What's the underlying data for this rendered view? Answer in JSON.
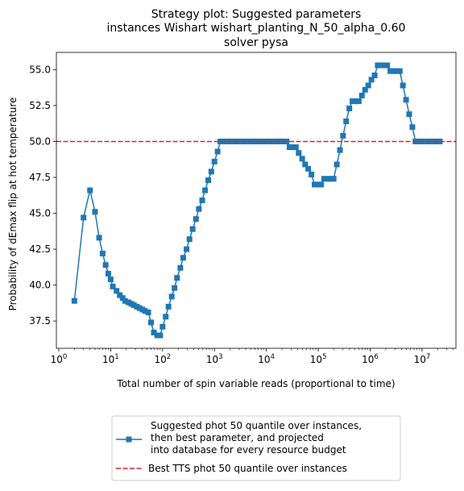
{
  "chart_data": {
    "type": "line",
    "title_lines": [
      "Strategy plot: Suggested parameters",
      "instances Wishart wishart_planting_N_50_alpha_0.60",
      "solver pysa"
    ],
    "xlabel": "Total number of spin variable reads (proportional to time)",
    "ylabel": "Probability of dEmax flip at hot temperature",
    "xscale": "log",
    "xlim": [
      0.9,
      45000000
    ],
    "ylim": [
      35.6,
      56.2
    ],
    "x_ticks": [
      {
        "value": 1,
        "base": "10",
        "exp": "0"
      },
      {
        "value": 10,
        "base": "10",
        "exp": "1"
      },
      {
        "value": 100,
        "base": "10",
        "exp": "2"
      },
      {
        "value": 1000,
        "base": "10",
        "exp": "3"
      },
      {
        "value": 10000,
        "base": "10",
        "exp": "4"
      },
      {
        "value": 100000,
        "base": "10",
        "exp": "5"
      },
      {
        "value": 1000000,
        "base": "10",
        "exp": "6"
      },
      {
        "value": 10000000,
        "base": "10",
        "exp": "7"
      }
    ],
    "y_ticks": [
      37.5,
      40.0,
      42.5,
      45.0,
      47.5,
      50.0,
      52.5,
      55.0
    ],
    "y_tick_labels": [
      "37.5",
      "40.0",
      "42.5",
      "45.0",
      "47.5",
      "50.0",
      "52.5",
      "55.0"
    ],
    "colors": {
      "series": "#1f77b4",
      "reference": "#d62728"
    },
    "series": [
      {
        "name": "Suggested phot 50 quantile over instances,\n then best parameter, and projected\n into database for every resource budget",
        "marker": "square",
        "x": [
          2,
          3,
          4,
          5,
          6,
          7,
          8,
          9,
          10,
          11,
          13,
          15,
          17,
          19,
          22,
          25,
          28,
          32,
          36,
          41,
          46,
          53,
          60,
          68,
          79,
          90,
          100,
          115,
          130,
          150,
          170,
          190,
          220,
          250,
          290,
          330,
          380,
          440,
          500,
          580,
          660,
          760,
          870,
          1000,
          1150,
          1300,
          1500,
          1750,
          2000,
          2300,
          2600,
          3000,
          3500,
          4000,
          4600,
          5300,
          6000,
          7000,
          8000,
          9200,
          10500,
          12000,
          14000,
          16000,
          18500,
          21000,
          24500,
          28000,
          32000,
          37000,
          42000,
          49000,
          56000,
          64000,
          74000,
          85000,
          98000,
          113000,
          130000,
          150000,
          172000,
          198000,
          228000,
          262000,
          300000,
          345000,
          397000,
          456000,
          525000,
          603000,
          694000,
          800000,
          920000,
          1060000,
          1220000,
          1400000,
          1610000,
          1850000,
          2130000,
          2450000,
          2810000,
          3240000,
          3720000,
          4280000,
          4920000,
          5660000,
          6510000,
          7480000,
          8610000,
          9900000,
          11400000,
          13100000,
          15000000,
          17300000,
          19900000,
          22000000
        ],
        "y": [
          38.9,
          44.7,
          46.6,
          45.1,
          43.3,
          42.2,
          41.4,
          40.8,
          40.4,
          39.9,
          39.6,
          39.3,
          39.1,
          38.9,
          38.8,
          38.7,
          38.6,
          38.5,
          38.4,
          38.3,
          38.2,
          38.1,
          37.4,
          36.7,
          36.5,
          36.5,
          37.1,
          37.8,
          38.5,
          39.2,
          39.8,
          40.5,
          41.2,
          41.9,
          42.5,
          43.2,
          43.9,
          44.6,
          45.3,
          45.9,
          46.6,
          47.3,
          47.9,
          48.6,
          49.3,
          50.0,
          50.0,
          50.0,
          50.0,
          50.0,
          50.0,
          50.0,
          50.0,
          50.0,
          50.0,
          50.0,
          50.0,
          50.0,
          50.0,
          50.0,
          50.0,
          50.0,
          50.0,
          50.0,
          50.0,
          50.0,
          50.0,
          49.6,
          49.6,
          49.6,
          49.2,
          48.8,
          48.4,
          48.1,
          47.7,
          47.0,
          47.0,
          47.0,
          47.4,
          47.4,
          47.4,
          47.4,
          48.4,
          49.4,
          50.4,
          51.4,
          52.3,
          52.8,
          52.8,
          52.8,
          53.2,
          53.6,
          53.9,
          54.3,
          54.6,
          55.3,
          55.3,
          55.3,
          55.3,
          54.9,
          54.9,
          54.9,
          54.9,
          53.9,
          52.9,
          51.9,
          51.0,
          50.0,
          50.0,
          50.0,
          50.0,
          50.0,
          50.0,
          50.0,
          50.0,
          50.0
        ]
      }
    ],
    "reference_lines": [
      {
        "name": "Best TTS phot 50 quantile over instances",
        "y": 50.0,
        "style": "dashed"
      }
    ],
    "legend": {
      "placement": "below-center"
    }
  }
}
